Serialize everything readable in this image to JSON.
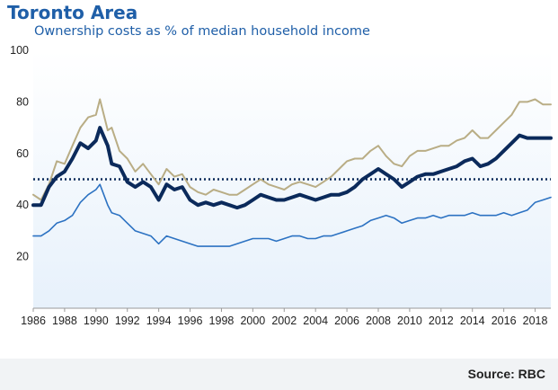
{
  "header": {
    "title": "Toronto Area",
    "subtitle": "Ownership costs as % of median household income"
  },
  "footer": {
    "source": "Source: RBC"
  },
  "colors": {
    "bold_line": "#0b2a5b",
    "tan_line": "#b9ad85",
    "blue_line": "#2c72c2",
    "plot_top": "#ffffff",
    "plot_bottom": "#e7f1fb",
    "reference": "#0b2a5b"
  },
  "chart_data": {
    "type": "line",
    "title": "Toronto Area",
    "subtitle": "Ownership costs as % of median household income",
    "xlim": [
      1986,
      2019
    ],
    "ylim": [
      0,
      100
    ],
    "grid": false,
    "legend": "none",
    "x_ticks": [
      "1986",
      "1988",
      "1990",
      "1992",
      "1994",
      "1996",
      "1998",
      "2000",
      "2002",
      "2004",
      "2006",
      "2008",
      "2010",
      "2012",
      "2014",
      "2016",
      "2018"
    ],
    "y_ticks": [
      "20",
      "40",
      "60",
      "80",
      "100"
    ],
    "reference_line": {
      "y": 50,
      "style": "dotted"
    },
    "series": [
      {
        "color": "#b9ad85",
        "width": 2,
        "x": [
          1986,
          1986.5,
          1987,
          1987.5,
          1988,
          1988.5,
          1989,
          1989.5,
          1990,
          1990.25,
          1990.75,
          1991,
          1991.5,
          1992,
          1992.5,
          1993,
          1993.5,
          1994,
          1994.5,
          1995,
          1995.5,
          1996,
          1996.5,
          1997,
          1997.5,
          1998,
          1998.5,
          1999,
          1999.5,
          2000,
          2000.5,
          2001,
          2001.5,
          2002,
          2002.5,
          2003,
          2003.5,
          2004,
          2004.5,
          2005,
          2005.5,
          2006,
          2006.5,
          2007,
          2007.5,
          2008,
          2008.5,
          2009,
          2009.5,
          2010,
          2010.5,
          2011,
          2011.5,
          2012,
          2012.5,
          2013,
          2013.5,
          2014,
          2014.5,
          2015,
          2015.5,
          2016,
          2016.5,
          2017,
          2017.5,
          2018,
          2018.5,
          2019
        ],
        "y": [
          44,
          42,
          48,
          57,
          56,
          63,
          70,
          74,
          75,
          81,
          69,
          70,
          61,
          58,
          53,
          56,
          52,
          48,
          54,
          51,
          52,
          47,
          45,
          44,
          46,
          45,
          44,
          44,
          46,
          48,
          50,
          48,
          47,
          46,
          48,
          49,
          48,
          47,
          49,
          51,
          54,
          57,
          58,
          58,
          61,
          63,
          59,
          56,
          55,
          59,
          61,
          61,
          62,
          63,
          63,
          65,
          66,
          69,
          66,
          66,
          69,
          72,
          75,
          80,
          80,
          81,
          79,
          79
        ]
      },
      {
        "color": "#0b2a5b",
        "width": 4,
        "x": [
          1986,
          1986.5,
          1987,
          1987.5,
          1988,
          1988.5,
          1989,
          1989.5,
          1990,
          1990.25,
          1990.75,
          1991,
          1991.5,
          1992,
          1992.5,
          1993,
          1993.5,
          1994,
          1994.5,
          1995,
          1995.5,
          1996,
          1996.5,
          1997,
          1997.5,
          1998,
          1998.5,
          1999,
          1999.5,
          2000,
          2000.5,
          2001,
          2001.5,
          2002,
          2002.5,
          2003,
          2003.5,
          2004,
          2004.5,
          2005,
          2005.5,
          2006,
          2006.5,
          2007,
          2007.5,
          2008,
          2008.5,
          2009,
          2009.5,
          2010,
          2010.5,
          2011,
          2011.5,
          2012,
          2012.5,
          2013,
          2013.5,
          2014,
          2014.5,
          2015,
          2015.5,
          2016,
          2016.5,
          2017,
          2017.5,
          2018,
          2018.5,
          2019
        ],
        "y": [
          40,
          40,
          47,
          51,
          53,
          58,
          64,
          62,
          65,
          70,
          63,
          56,
          55,
          49,
          47,
          49,
          47,
          42,
          48,
          46,
          47,
          42,
          40,
          41,
          40,
          41,
          40,
          39,
          40,
          42,
          44,
          43,
          42,
          42,
          43,
          44,
          43,
          42,
          43,
          44,
          44,
          45,
          47,
          50,
          52,
          54,
          52,
          50,
          47,
          49,
          51,
          52,
          52,
          53,
          54,
          55,
          57,
          58,
          55,
          56,
          58,
          61,
          64,
          67,
          66,
          66,
          66,
          66
        ]
      },
      {
        "color": "#2c72c2",
        "width": 1.6,
        "x": [
          1986,
          1986.5,
          1987,
          1987.5,
          1988,
          1988.5,
          1989,
          1989.5,
          1990,
          1990.25,
          1990.75,
          1991,
          1991.5,
          1992,
          1992.5,
          1993,
          1993.5,
          1994,
          1994.5,
          1995,
          1995.5,
          1996,
          1996.5,
          1997,
          1997.5,
          1998,
          1998.5,
          1999,
          1999.5,
          2000,
          2000.5,
          2001,
          2001.5,
          2002,
          2002.5,
          2003,
          2003.5,
          2004,
          2004.5,
          2005,
          2005.5,
          2006,
          2006.5,
          2007,
          2007.5,
          2008,
          2008.5,
          2009,
          2009.5,
          2010,
          2010.5,
          2011,
          2011.5,
          2012,
          2012.5,
          2013,
          2013.5,
          2014,
          2014.5,
          2015,
          2015.5,
          2016,
          2016.5,
          2017,
          2017.5,
          2018,
          2018.5,
          2019
        ],
        "y": [
          28,
          28,
          30,
          33,
          34,
          36,
          41,
          44,
          46,
          48,
          40,
          37,
          36,
          33,
          30,
          29,
          28,
          25,
          28,
          27,
          26,
          25,
          24,
          24,
          24,
          24,
          24,
          25,
          26,
          27,
          27,
          27,
          26,
          27,
          28,
          28,
          27,
          27,
          28,
          28,
          29,
          30,
          31,
          32,
          34,
          35,
          36,
          35,
          33,
          34,
          35,
          35,
          36,
          35,
          36,
          36,
          36,
          37,
          36,
          36,
          36,
          37,
          36,
          37,
          38,
          41,
          42,
          43
        ]
      }
    ]
  }
}
